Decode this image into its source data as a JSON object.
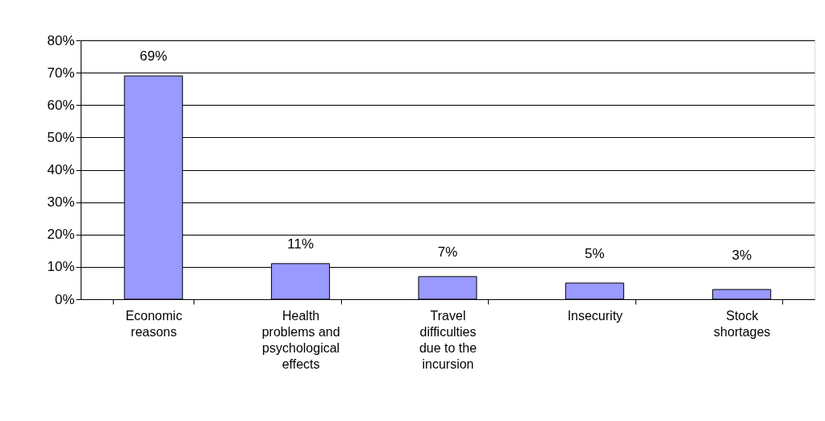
{
  "chart_data": {
    "type": "bar",
    "categories": [
      "Economic reasons",
      "Health problems and psychological effects",
      "Travel difficulties due to the incursion",
      "Insecurity",
      "Stock shortages"
    ],
    "values": [
      69,
      11,
      7,
      5,
      3
    ],
    "color": "#9999ff",
    "value_labels": [
      "69%",
      "11%",
      "7%",
      "5%",
      "3%"
    ],
    "ylim": [
      0,
      80
    ],
    "yticks": [
      {
        "value": 0,
        "label": "0%"
      },
      {
        "value": 10,
        "label": "10%"
      },
      {
        "value": 20,
        "label": "20%"
      },
      {
        "value": 30,
        "label": "30%"
      },
      {
        "value": 40,
        "label": "40%"
      },
      {
        "value": 50,
        "label": "50%"
      },
      {
        "value": 60,
        "label": "60%"
      },
      {
        "value": 70,
        "label": "70%"
      },
      {
        "value": 80,
        "label": "80%"
      }
    ],
    "grid": "y"
  }
}
